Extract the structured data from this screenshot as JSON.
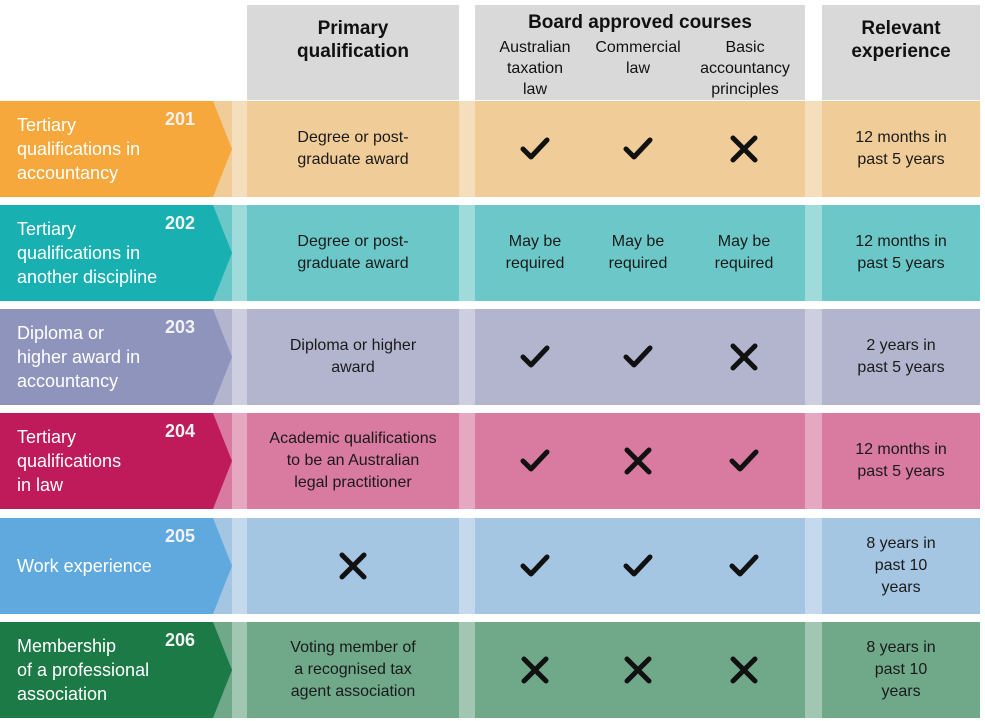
{
  "headers": {
    "primary": "Primary\nqualification",
    "board": "Board approved courses",
    "board_sub": [
      "Australian\ntaxation\nlaw",
      "Commercial\nlaw",
      "Basic\naccountancy\nprinciples"
    ],
    "experience": "Relevant\nexperience"
  },
  "rows": [
    {
      "num": "201",
      "label": "Tertiary\nqualifications in\naccountancy",
      "primary": "Degree or post-\ngraduate award",
      "courses": [
        "check",
        "check",
        "cross"
      ],
      "experience": "12 months in\npast 5 years",
      "cap_color": "#f7a83d",
      "band_color": "#f0cc98"
    },
    {
      "num": "202",
      "label": "Tertiary\nqualifications in\nanother discipline",
      "primary": "Degree or post-\ngraduate award",
      "courses": [
        "May be\nrequired",
        "May be\nrequired",
        "May be\nrequired"
      ],
      "experience": "12 months in\npast 5 years",
      "cap_color": "#18b0b0",
      "band_color": "#6cc8c8"
    },
    {
      "num": "203",
      "label": "Diploma or\nhigher award in\naccountancy",
      "primary": "Diploma or higher\naward",
      "courses": [
        "check",
        "check",
        "cross"
      ],
      "experience": "2 years in\npast 5 years",
      "cap_color": "#8f94bd",
      "band_color": "#b3b5cf"
    },
    {
      "num": "204",
      "label": "Tertiary\nqualifications\nin law",
      "primary": "Academic qualifications\nto be an Australian\nlegal practitioner",
      "courses": [
        "check",
        "cross",
        "check"
      ],
      "experience": "12 months in\npast 5 years",
      "cap_color": "#bf1b5a",
      "band_color": "#d97aa0"
    },
    {
      "num": "205",
      "label": "Work experience",
      "primary": "cross",
      "courses": [
        "check",
        "check",
        "check"
      ],
      "experience": "8 years in\npast 10\nyears",
      "cap_color": "#5fa9df",
      "band_color": "#a5c6e2"
    },
    {
      "num": "206",
      "label": "Membership\nof a professional\nassociation",
      "primary": "Voting member of\na recognised tax\nagent association",
      "courses": [
        "cross",
        "cross",
        "cross"
      ],
      "experience": "8 years in\npast 10\nyears",
      "cap_color": "#1b7a45",
      "band_color": "#6fa98a"
    }
  ],
  "colors": {
    "header_bg": "#d9d9d9",
    "mark": "#111111"
  }
}
